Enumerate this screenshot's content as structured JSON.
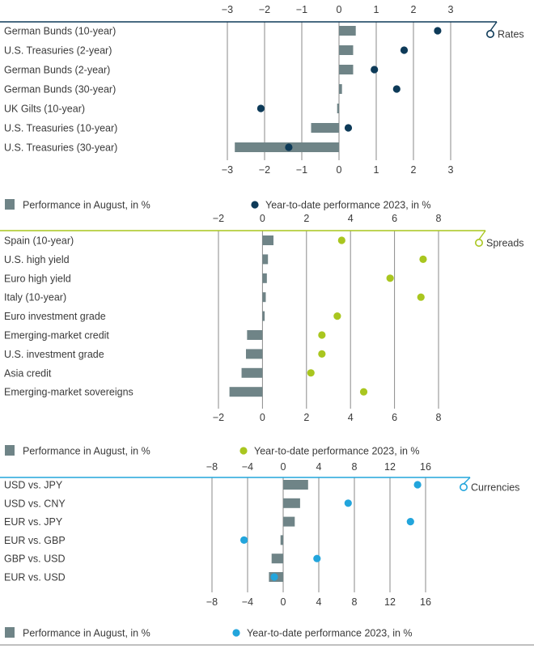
{
  "colors": {
    "bar": "#6f8487",
    "rates": "#0d3a58",
    "spreads": "#a9c61f",
    "currencies": "#22a5dc",
    "grid": "#8a8a8a",
    "text": "#3a3a3a",
    "bottom_rule": "#9a9a9a"
  },
  "chart_data": [
    {
      "type": "bar",
      "panel": "rates",
      "title": "Rates",
      "categories": [
        "German Bunds (10-year)",
        "U.S. Treasuries (2-year)",
        "German Bunds (2-year)",
        "German Bunds (30-year)",
        "UK Gilts (10-year)",
        "U.S. Treasuries (10-year)",
        "U.S. Treasuries (30-year)"
      ],
      "series": [
        {
          "name": "Performance in August, in %",
          "kind": "bar",
          "values": [
            0.45,
            0.38,
            0.38,
            0.08,
            -0.05,
            -0.75,
            -2.8
          ]
        },
        {
          "name": "Year-to-date performance 2023, in %",
          "kind": "dot",
          "values": [
            2.65,
            1.75,
            0.95,
            1.55,
            -2.1,
            0.25,
            -1.35
          ]
        }
      ],
      "xlim": [
        -3,
        3
      ],
      "ticks": [
        "−3",
        "−2",
        "−1",
        "0",
        "1",
        "2",
        "3"
      ],
      "tick_values": [
        -3,
        -2,
        -1,
        0,
        1,
        2,
        3
      ],
      "legend": {
        "bar": "Performance in August, in %",
        "dot": "Year-to-date performance 2023, in %"
      }
    },
    {
      "type": "bar",
      "panel": "spreads",
      "title": "Spreads",
      "categories": [
        "Spain (10-year)",
        "U.S. high yield",
        "Euro high yield",
        "Italy (10-year)",
        "Euro investment grade",
        "Emerging-market credit",
        "U.S. investment grade",
        "Asia credit",
        "Emerging-market sovereigns"
      ],
      "series": [
        {
          "name": "Performance in August, in %",
          "kind": "bar",
          "values": [
            0.5,
            0.25,
            0.2,
            0.15,
            0.1,
            -0.7,
            -0.75,
            -0.95,
            -1.5
          ]
        },
        {
          "name": "Year-to-date performance 2023, in %",
          "kind": "dot",
          "values": [
            3.6,
            7.3,
            5.8,
            7.2,
            3.4,
            2.7,
            2.7,
            2.2,
            4.6
          ]
        }
      ],
      "xlim": [
        -2,
        8
      ],
      "ticks": [
        "−2",
        "0",
        "2",
        "4",
        "6",
        "8"
      ],
      "tick_values": [
        -2,
        0,
        2,
        4,
        6,
        8
      ],
      "legend": {
        "bar": "Performance in August, in %",
        "dot": "Year-to-date performance 2023, in %"
      }
    },
    {
      "type": "bar",
      "panel": "currencies",
      "title": "Currencies",
      "categories": [
        "USD vs. JPY",
        "USD vs. CNY",
        "EUR vs. JPY",
        "EUR vs. GBP",
        "GBP vs. USD",
        "EUR vs. USD"
      ],
      "series": [
        {
          "name": "Performance in August, in %",
          "kind": "bar",
          "values": [
            2.8,
            1.9,
            1.3,
            -0.3,
            -1.3,
            -1.6
          ]
        },
        {
          "name": "Year-to-date performance 2023, in %",
          "kind": "dot",
          "values": [
            15.1,
            7.3,
            14.3,
            -4.4,
            3.8,
            -1.0
          ]
        }
      ],
      "xlim": [
        -8,
        16
      ],
      "ticks": [
        "−8",
        "−4",
        "0",
        "4",
        "8",
        "12",
        "16"
      ],
      "tick_values": [
        -8,
        -4,
        0,
        4,
        8,
        12,
        16
      ],
      "legend": {
        "bar": "Performance in August, in %",
        "dot": "Year-to-date performance 2023, in %"
      }
    }
  ]
}
